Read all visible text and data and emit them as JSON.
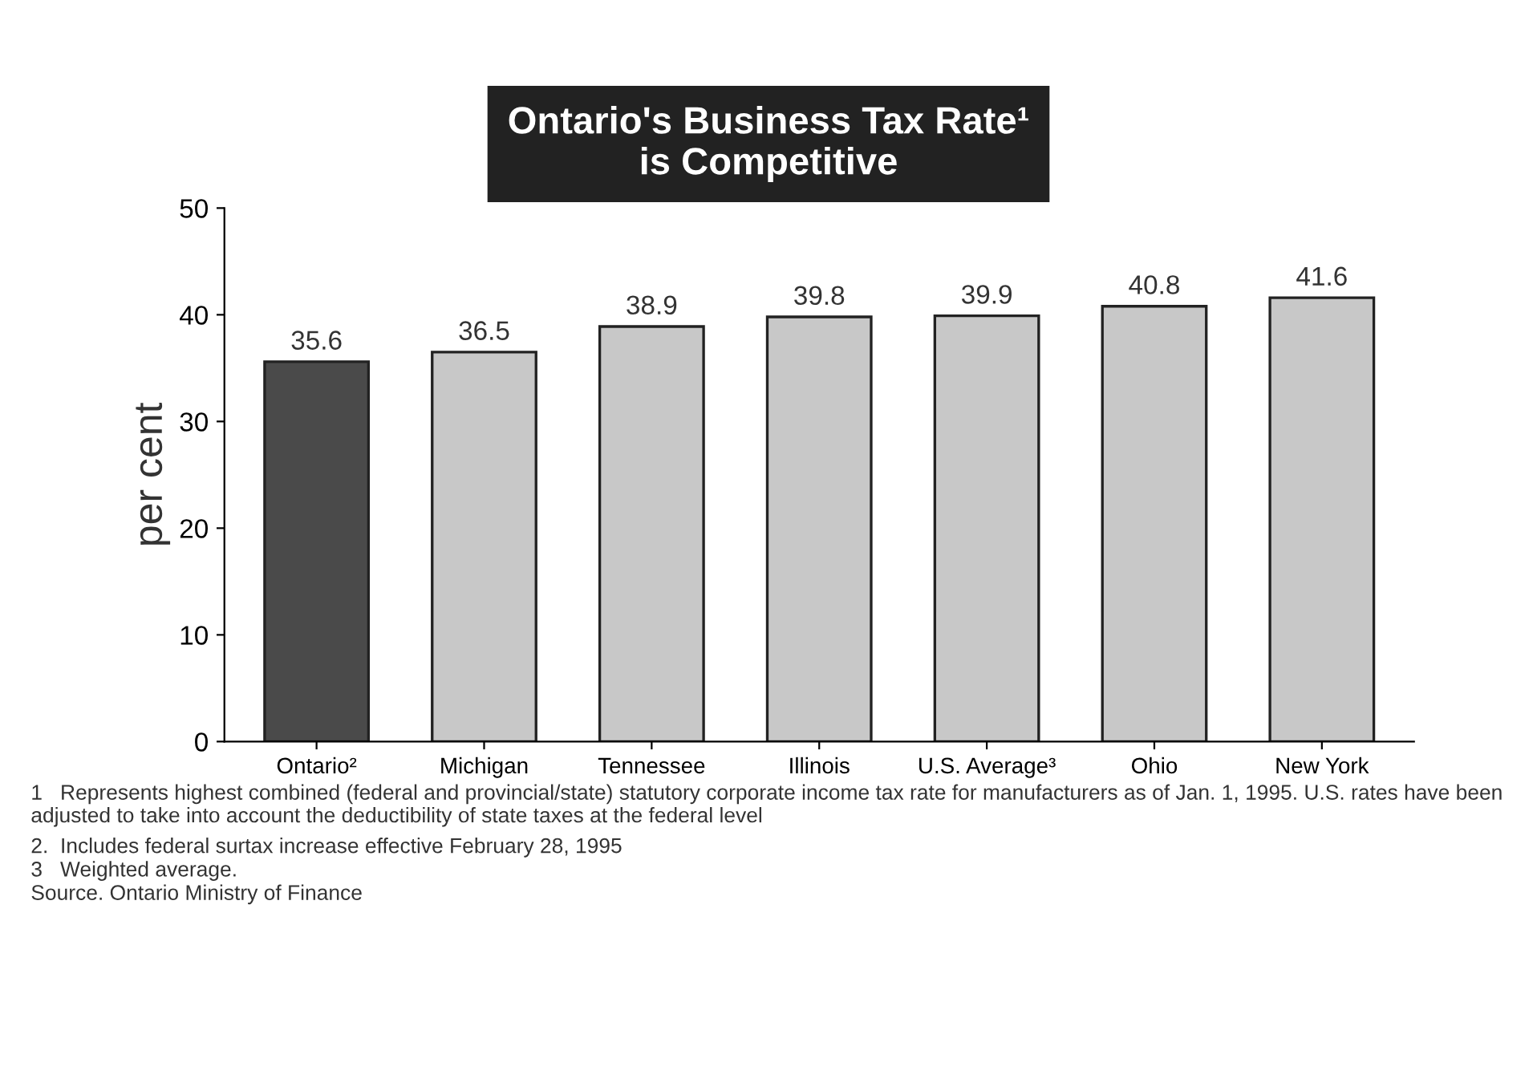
{
  "chart_data": {
    "type": "bar",
    "title": "Ontario's Business Tax Rate¹\nis Competitive",
    "ylabel": "per cent",
    "categories": [
      "Ontario²",
      "Michigan",
      "Tennessee",
      "Illinois",
      "U.S. Average³",
      "Ohio",
      "New York"
    ],
    "values": [
      35.6,
      36.5,
      38.9,
      39.8,
      39.9,
      40.8,
      41.6
    ],
    "colors": [
      "#4a4a4a",
      "#c8c8c8",
      "#c8c8c8",
      "#c8c8c8",
      "#c8c8c8",
      "#c8c8c8",
      "#c8c8c8"
    ],
    "ylim": [
      0,
      50
    ],
    "yticks": [
      0,
      10,
      20,
      30,
      40,
      50
    ],
    "grid": false,
    "data_labels": true,
    "annotations": [
      "1   Represents highest combined (federal and provincial/state) statutory corporate income tax rate for manufacturers as of Jan. 1, 1995. U.S. rates have been adjusted to take into account the deductibility of state taxes at the federal level",
      "2.  Includes federal surtax increase effective February 28, 1995",
      "3   Weighted average.",
      "Source. Ontario Ministry of Finance"
    ]
  }
}
